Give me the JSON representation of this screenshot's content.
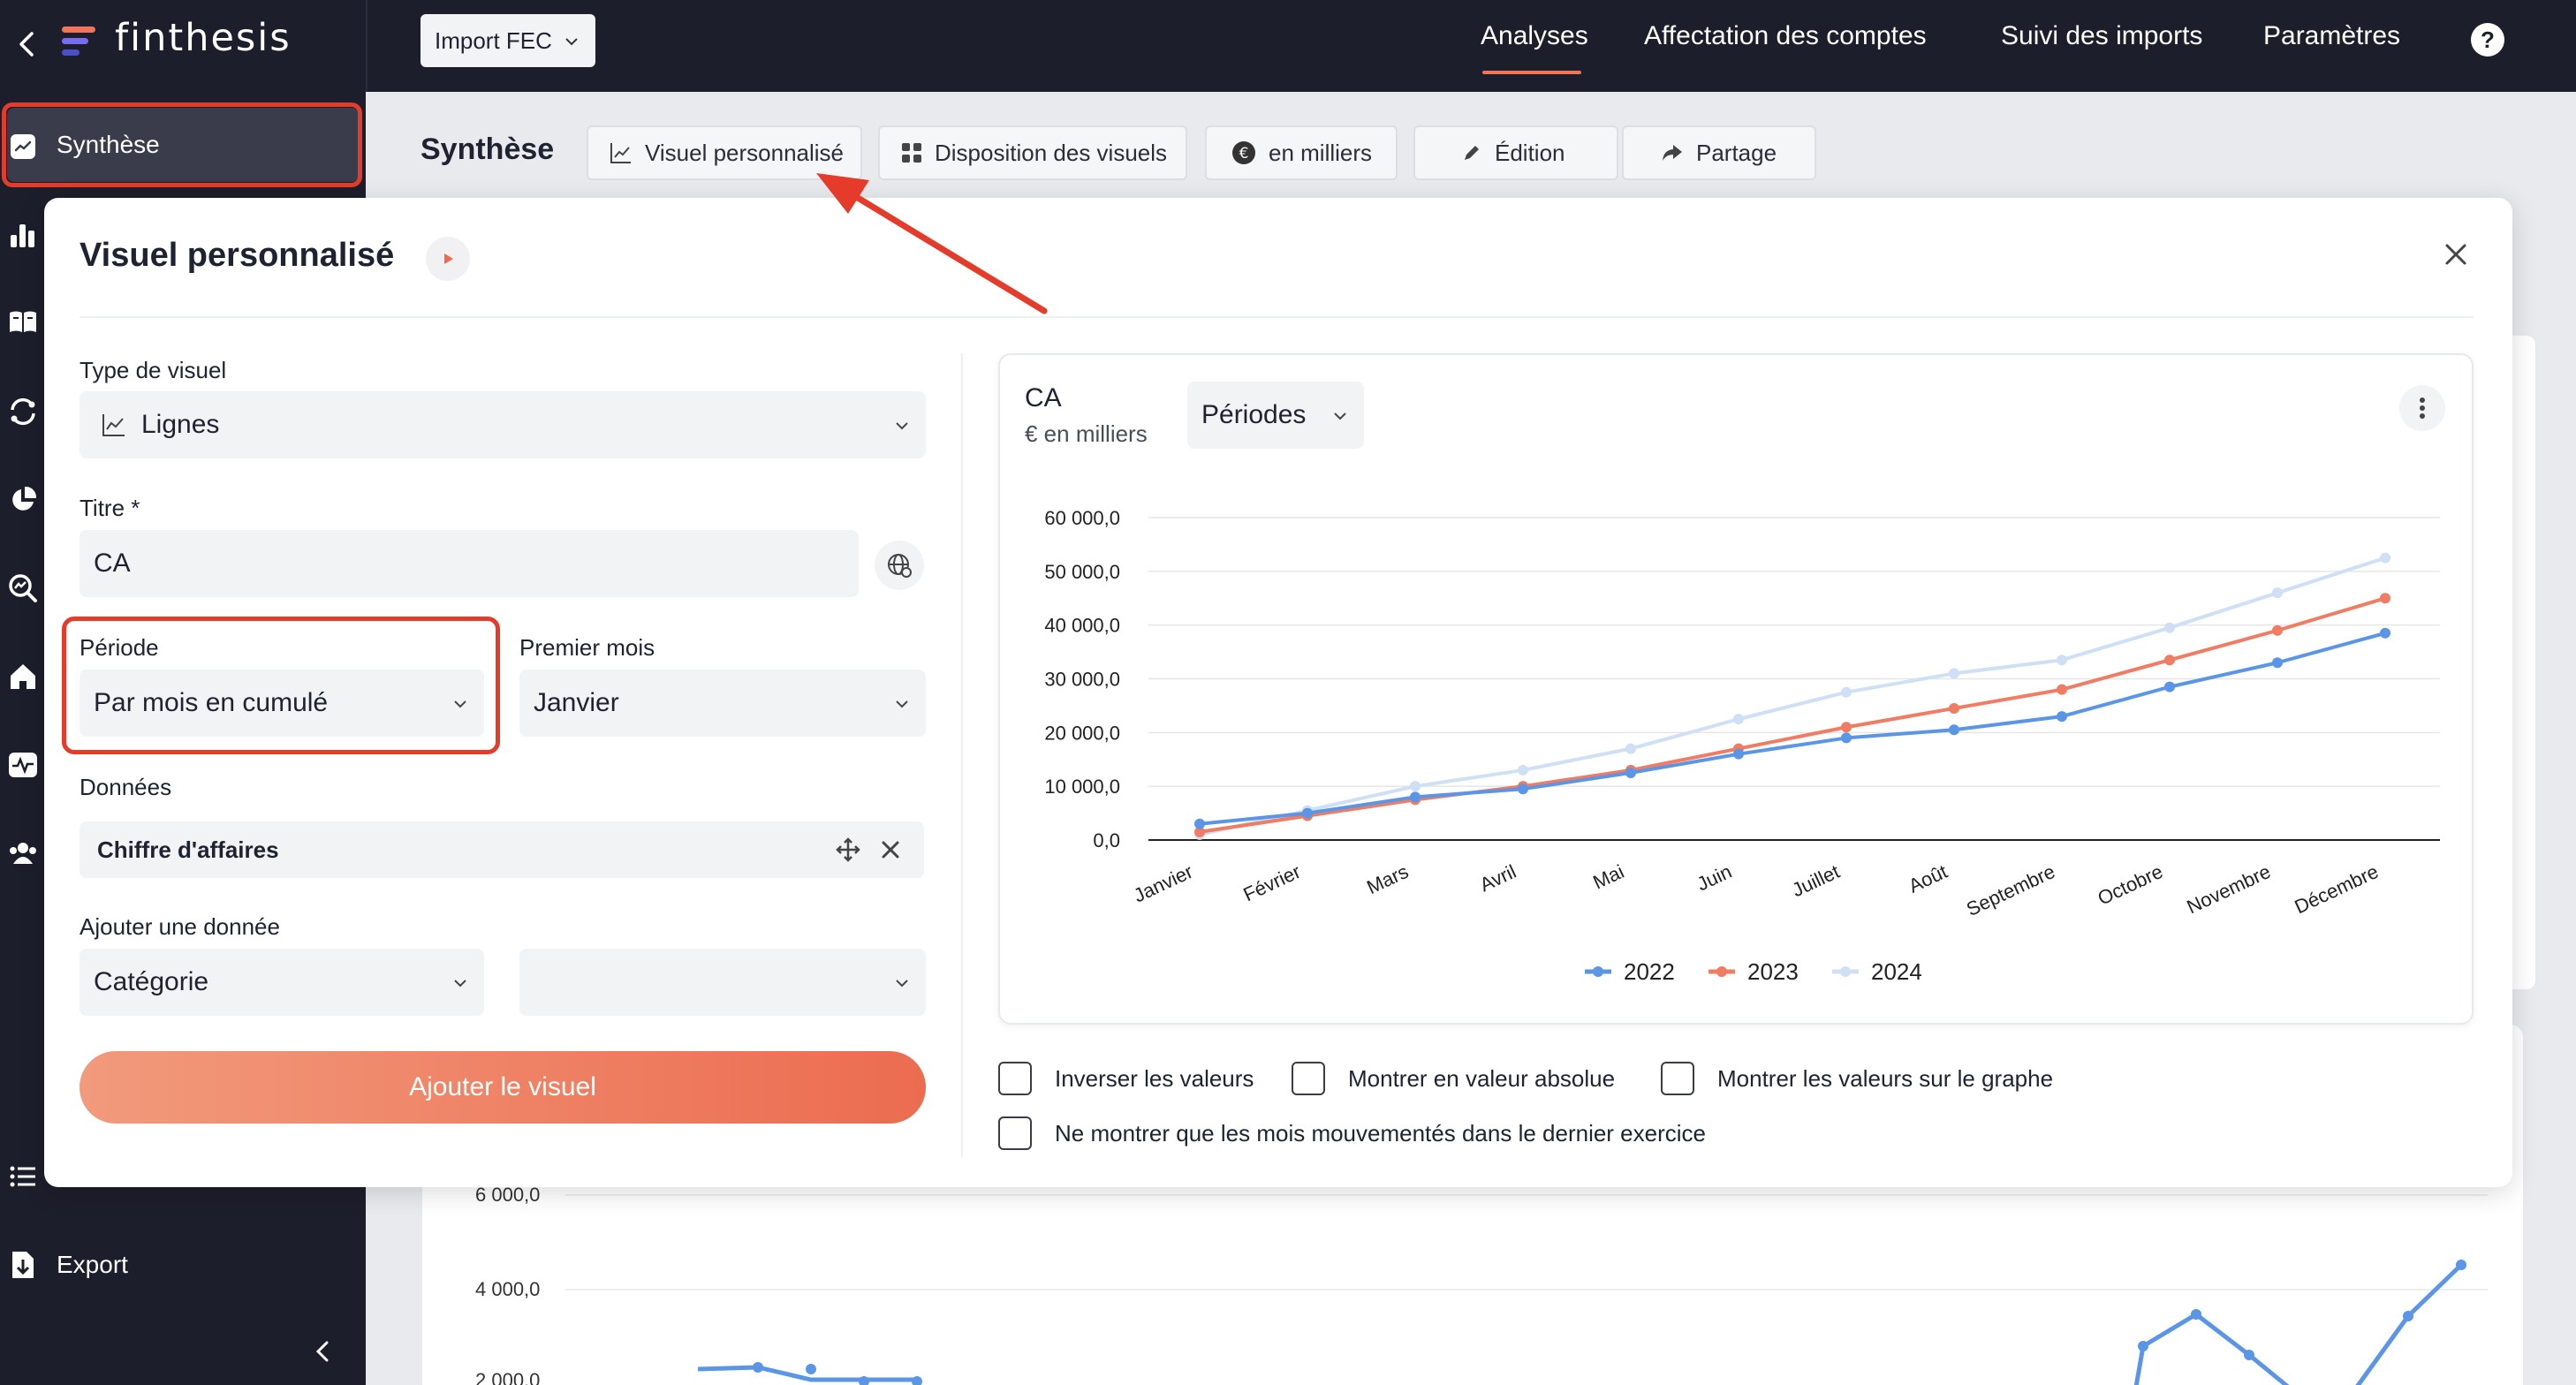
{
  "app": {
    "brand": "finthesis",
    "import_button": "Import FEC"
  },
  "nav": {
    "tabs": [
      "Analyses",
      "Affectation des comptes",
      "Suivi des imports",
      "Paramètres"
    ],
    "active": "Analyses",
    "help": "?"
  },
  "sidebar": {
    "active_label": "Synthèse",
    "export_label": "Export"
  },
  "toolbar": {
    "title": "Synthèse",
    "buttons": [
      "Visuel personnalisé",
      "Disposition des visuels",
      "en milliers",
      "Édition",
      "Partage"
    ]
  },
  "background_chart": {
    "ticks": [
      "6 000,0",
      "4 000,0",
      "2 000,0"
    ]
  },
  "modal": {
    "title": "Visuel personnalisé",
    "type_label": "Type de visuel",
    "type_value": "Lignes",
    "title_label": "Titre *",
    "title_value": "CA",
    "period_label": "Période",
    "period_value": "Par mois en cumulé",
    "first_month_label": "Premier mois",
    "first_month_value": "Janvier",
    "data_label": "Données",
    "data_item": "Chiffre d'affaires",
    "add_data_label": "Ajouter une donnée",
    "category_value": "Catégorie",
    "second_value": "",
    "submit": "Ajouter le visuel"
  },
  "chart_card": {
    "title": "CA",
    "unit": "€ en milliers",
    "period_button": "Périodes"
  },
  "options": {
    "invert": "Inverser les valeurs",
    "absolute": "Montrer en valeur absolue",
    "show_values": "Montrer les valeurs sur le graphe",
    "moved_months": "Ne montrer que les mois mouvementés dans le dernier exercice"
  },
  "chart_data": {
    "type": "line",
    "title": "CA",
    "subtitle": "€ en milliers",
    "categories": [
      "Janvier",
      "Février",
      "Mars",
      "Avril",
      "Mai",
      "Juin",
      "Juillet",
      "Août",
      "Septembre",
      "Octobre",
      "Novembre",
      "Décembre"
    ],
    "series": [
      {
        "name": "2022",
        "color": "#5b95e6",
        "values": [
          3000,
          5000,
          8000,
          9500,
          12500,
          16000,
          19000,
          20500,
          23000,
          28500,
          33000,
          38500
        ]
      },
      {
        "name": "2023",
        "color": "#ef7c63",
        "values": [
          1500,
          4500,
          7500,
          10000,
          13000,
          17000,
          21000,
          24500,
          28000,
          33500,
          39000,
          45000
        ]
      },
      {
        "name": "2024",
        "color": "#cfe0f5",
        "values": [
          1000,
          5500,
          10000,
          13000,
          17000,
          22500,
          27500,
          31000,
          33500,
          39500,
          46000,
          52500
        ]
      }
    ],
    "yticks": [
      "60 000,0",
      "50 000,0",
      "40 000,0",
      "30 000,0",
      "20 000,0",
      "10 000,0",
      "0,0"
    ],
    "ylim": [
      0,
      60000
    ],
    "grid": true,
    "legend": "bottom"
  }
}
